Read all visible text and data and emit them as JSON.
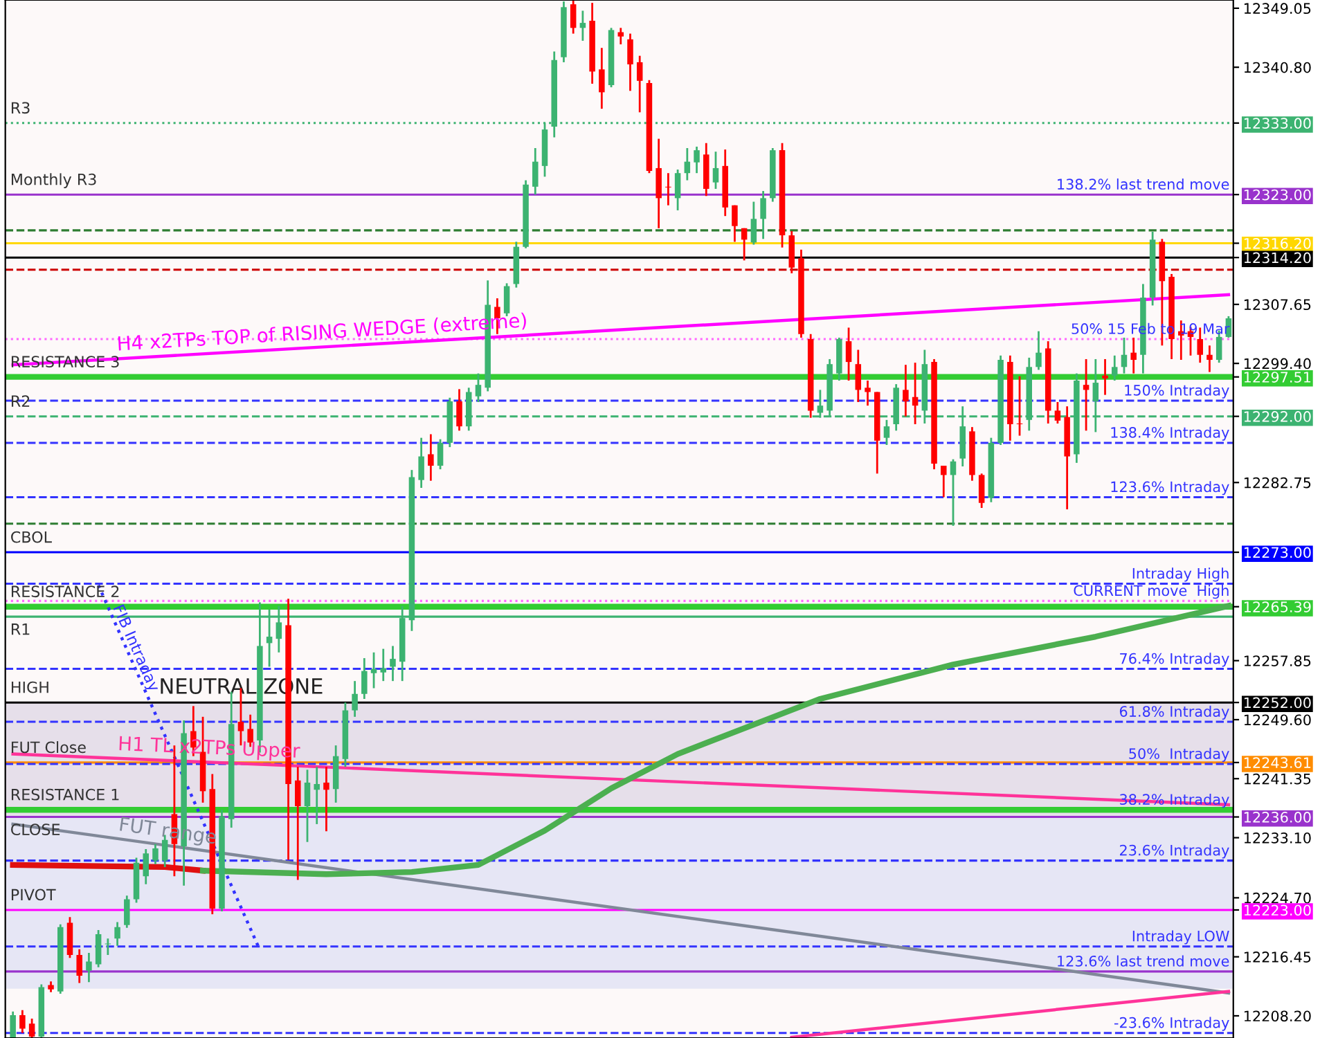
{
  "chart_data": {
    "type": "candlestick",
    "categories": [
      null,
      null,
      null,
      null,
      null,
      null,
      null,
      null,
      null,
      null,
      null,
      null,
      null,
      null,
      null,
      null,
      null,
      null,
      null,
      null,
      null,
      null,
      null,
      null,
      null,
      null,
      null,
      null,
      null,
      null,
      null,
      null,
      null,
      null,
      null,
      null,
      null,
      null,
      null,
      null,
      null,
      null,
      null,
      null,
      null,
      null,
      null,
      null,
      null,
      null,
      null,
      null,
      null,
      null,
      null,
      null,
      null,
      null,
      null,
      null,
      null,
      null,
      null,
      null,
      null,
      null,
      null,
      null,
      null,
      null,
      null,
      null,
      null,
      null,
      null,
      null,
      null,
      null,
      null,
      null,
      null,
      null,
      null,
      null,
      null,
      null,
      null,
      null,
      null,
      null,
      null,
      null,
      null,
      null,
      null,
      null,
      null,
      null,
      null,
      null,
      null,
      null,
      null,
      null,
      null,
      null,
      null,
      null,
      null,
      null,
      null,
      null,
      null,
      null,
      null,
      null,
      null,
      null,
      null,
      null,
      null,
      null,
      null,
      null,
      null,
      null,
      null,
      null,
      null
    ],
    "ohlc": [
      [
        12205.2,
        12208.8,
        12205.2,
        12208.3
      ],
      [
        12208.3,
        12209,
        12205.8,
        12206.4
      ],
      [
        12207.1,
        12207.8,
        12205.2,
        12205.3
      ],
      [
        12205.3,
        12212.6,
        12205.2,
        12212.2
      ],
      [
        12212.5,
        12213,
        12211.5,
        12211.9
      ],
      [
        12211.6,
        12221,
        12211.3,
        12220.6
      ],
      [
        12221.2,
        12222,
        12216.3,
        12216.7
      ],
      [
        12216.7,
        12217.5,
        12212.8,
        12213.8
      ],
      [
        12214.5,
        12217,
        12212.9,
        12215.8
      ],
      [
        12215.4,
        12220.2,
        12215,
        12219.6
      ],
      [
        12218.2,
        12219,
        12216.7,
        12218.3
      ],
      [
        12219,
        12221.3,
        12218,
        12220.6
      ],
      [
        12220.9,
        12225,
        12220.5,
        12224.5
      ],
      [
        12224.5,
        12230.3,
        12224,
        12229.6
      ],
      [
        12227.7,
        12231.5,
        12226.6,
        12230.9
      ],
      [
        12229.9,
        12232.2,
        12229.4,
        12231.6
      ],
      [
        12229.9,
        12233.5,
        12229,
        12232.8
      ],
      [
        12236.4,
        12246,
        12227.7,
        12232.2
      ],
      [
        12231.9,
        12249.5,
        12226.4,
        12247.7
      ],
      [
        12248,
        12251.5,
        12244.5,
        12245.7
      ],
      [
        12245.1,
        12250,
        12238,
        12239.6
      ],
      [
        12239.9,
        12242,
        12222.4,
        12223.2
      ],
      [
        12223.2,
        12237,
        12222.8,
        12236.1
      ],
      [
        12235.7,
        12253.5,
        12234.5,
        12249
      ],
      [
        12249.3,
        12254,
        12246,
        12248
      ],
      [
        12248.3,
        12250.3,
        12245.8,
        12246.4
      ],
      [
        12246.7,
        12266,
        12245,
        12259.9
      ],
      [
        12260.3,
        12265,
        12257,
        12261.2
      ],
      [
        12260.9,
        12265.5,
        12259,
        12263.2
      ],
      [
        12262.8,
        12266.5,
        12230,
        12240.6
      ],
      [
        12241.1,
        12243,
        12227.2,
        12237.5
      ],
      [
        12237.5,
        12242.6,
        12232.5,
        12240.8
      ],
      [
        12239.8,
        12243,
        12235,
        12240.6
      ],
      [
        12240.8,
        12243,
        12234,
        12239.8
      ],
      [
        12239.9,
        12246,
        12238,
        12244.5
      ],
      [
        12244.1,
        12252,
        12243,
        12250.9
      ],
      [
        12250.9,
        12255,
        12250,
        12253.2
      ],
      [
        12253.2,
        12258.2,
        12252.5,
        12256.4
      ],
      [
        12256.1,
        12259,
        12254,
        12256.7
      ],
      [
        12256.2,
        12259.5,
        12255,
        12256.8
      ],
      [
        12257,
        12259.9,
        12255,
        12258.1
      ],
      [
        12257.7,
        12265.5,
        12255,
        12263.8
      ],
      [
        12263.5,
        12284.5,
        12262,
        12283.5
      ],
      [
        12283.1,
        12289,
        12282,
        12286.4
      ],
      [
        12286.7,
        12289.5,
        12283,
        12285.1
      ],
      [
        12285.1,
        12288.8,
        12284.6,
        12288.3
      ],
      [
        12288.3,
        12294.6,
        12287.7,
        12294.1
      ],
      [
        12294.1,
        12295.8,
        12290,
        12290.6
      ],
      [
        12290.6,
        12296,
        12290,
        12295.4
      ],
      [
        12294.8,
        12298,
        12294,
        12296.4
      ],
      [
        12296,
        12311,
        12295.5,
        12307.6
      ],
      [
        12307.3,
        12308.5,
        12303.5,
        12305.7
      ],
      [
        12306.4,
        12310.6,
        12306,
        12310.2
      ],
      [
        12310.5,
        12316.4,
        12310,
        12315.7
      ],
      [
        12315.7,
        12325,
        12315.5,
        12324.4
      ],
      [
        12324.1,
        12329.5,
        12323,
        12327.6
      ],
      [
        12327,
        12333,
        12325.5,
        12332.1
      ],
      [
        12332.5,
        12343,
        12331,
        12341.8
      ],
      [
        12342.2,
        12350,
        12341.5,
        12349.2
      ],
      [
        12349.6,
        12350.1,
        12345.5,
        12346.3
      ],
      [
        12346.3,
        12348.7,
        12344.5,
        12347
      ],
      [
        12347.3,
        12349.8,
        12338.5,
        12340.2
      ],
      [
        12340.5,
        12343.5,
        12335,
        12337.3
      ],
      [
        12338.3,
        12346.3,
        12338,
        12346
      ],
      [
        12345.7,
        12346.3,
        12344,
        12345.1
      ],
      [
        12344.7,
        12345.5,
        12337.5,
        12341.2
      ],
      [
        12341.5,
        12342.4,
        12334.5,
        12338.9
      ],
      [
        12338.6,
        12339,
        12326,
        12326.3
      ],
      [
        12326.7,
        12330.8,
        12318.3,
        12322.5
      ],
      [
        12324.1,
        12326,
        12321.5,
        12324
      ],
      [
        12322.5,
        12326.5,
        12320.8,
        12326
      ],
      [
        12326,
        12329.5,
        12325,
        12327.6
      ],
      [
        12327.5,
        12329.7,
        12326,
        12329.2
      ],
      [
        12328.6,
        12330.2,
        12322.8,
        12323.8
      ],
      [
        12324.7,
        12329,
        12323.8,
        12326.7
      ],
      [
        12327,
        12329.3,
        12320,
        12321.2
      ],
      [
        12321.5,
        12321.5,
        12316.4,
        12318.6
      ],
      [
        12318.3,
        12318.3,
        12313.8,
        12316.7
      ],
      [
        12316.3,
        12322,
        12316,
        12319.6
      ],
      [
        12319.6,
        12323.5,
        12316.8,
        12322.5
      ],
      [
        12322.5,
        12329.5,
        12322,
        12329.2
      ],
      [
        12329.2,
        12330.2,
        12315.6,
        12317.3
      ],
      [
        12317.3,
        12317.9,
        12312,
        12312.8
      ],
      [
        12314.1,
        12315.3,
        12303,
        12303.5
      ],
      [
        12302.8,
        12303.5,
        12291.8,
        12292.8
      ],
      [
        12292.5,
        12295.7,
        12291.8,
        12293.5
      ],
      [
        12292.8,
        12300,
        12292,
        12299.3
      ],
      [
        12298,
        12303,
        12297,
        12302.8
      ],
      [
        12302.5,
        12304.4,
        12297,
        12299.6
      ],
      [
        12299.3,
        12301.3,
        12294,
        12295.7
      ],
      [
        12296,
        12297,
        12293.5,
        12295.4
      ],
      [
        12295.4,
        12295.4,
        12284,
        12288.6
      ],
      [
        12289,
        12291.5,
        12288,
        12290.6
      ],
      [
        12290.9,
        12296.5,
        12290,
        12296
      ],
      [
        12295.7,
        12299.2,
        12292,
        12294.1
      ],
      [
        12294.7,
        12299.5,
        12290.9,
        12293.5
      ],
      [
        12292.8,
        12301.3,
        12291,
        12299.3
      ],
      [
        12299.6,
        12300,
        12284.6,
        12285.4
      ],
      [
        12285.1,
        12285.1,
        12280.7,
        12283.8
      ],
      [
        12283.8,
        12286,
        12276.7,
        12285.7
      ],
      [
        12286.1,
        12293.4,
        12285,
        12290.6
      ],
      [
        12289.9,
        12290.5,
        12283,
        12283.8
      ],
      [
        12283.8,
        12284,
        12279.2,
        12279.9
      ],
      [
        12280.6,
        12289,
        12280,
        12288.3
      ],
      [
        12288.3,
        12300.5,
        12288,
        12299.9
      ],
      [
        12299.6,
        12300.5,
        12288.6,
        12290.9
      ],
      [
        12291,
        12297.6,
        12289.3,
        12290.9
      ],
      [
        12291.5,
        12300.2,
        12290,
        12298.9
      ],
      [
        12298.9,
        12303.9,
        12298.5,
        12300.9
      ],
      [
        12301.5,
        12302.5,
        12291,
        12292.8
      ],
      [
        12292.8,
        12294,
        12291,
        12291.4
      ],
      [
        12291.9,
        12293.4,
        12279,
        12286.4
      ],
      [
        12286.7,
        12298,
        12285.5,
        12297
      ],
      [
        12296.4,
        12300,
        12290,
        12295.7
      ],
      [
        12294.1,
        12300,
        12289.8,
        12296.7
      ],
      [
        12297.7,
        12300,
        12295,
        12297.3
      ],
      [
        12297.7,
        12300.5,
        12297,
        12298.9
      ],
      [
        12298.9,
        12303,
        12298,
        12300.6
      ],
      [
        12300.9,
        12303,
        12298,
        12299.9
      ],
      [
        12300.6,
        12310.5,
        12298,
        12308.6
      ],
      [
        12308.6,
        12317.8,
        12307.5,
        12316.7
      ],
      [
        12316.4,
        12316.8,
        12301.9,
        12310.9
      ],
      [
        12311.5,
        12311.9,
        12300,
        12302.8
      ],
      [
        12303.9,
        12305.4,
        12299.9,
        12303.3
      ],
      [
        12303.9,
        12304.5,
        12300.5,
        12303.1
      ],
      [
        12302.8,
        12304.4,
        12299.5,
        12300.6
      ],
      [
        12300.6,
        12301.9,
        12298.2,
        12299.9
      ],
      [
        12299.9,
        12304,
        12299.5,
        12303.1
      ],
      [
        12303.1,
        12306,
        12303,
        12305.7
      ]
    ],
    "series": [
      {
        "type": "line",
        "name": "H4 x2TPs TOP of RISING WEDGE (extreme)",
        "color": "#ff00ff",
        "line_style": "solid",
        "values": [
          12299.2,
          null,
          null,
          null,
          null,
          null,
          null,
          null,
          null,
          null,
          null,
          null,
          null,
          null,
          null,
          null,
          null,
          null,
          null,
          null,
          null,
          null,
          null,
          null,
          null,
          null,
          null,
          null,
          null,
          null,
          null,
          null,
          null,
          null,
          null,
          null,
          null,
          null,
          null,
          null,
          null,
          null,
          null,
          null,
          null,
          null,
          null,
          null,
          null,
          null,
          null,
          null,
          null,
          null,
          null,
          null,
          null,
          null,
          null,
          null,
          null,
          null,
          null,
          null,
          null,
          null,
          null,
          null,
          null,
          null,
          null,
          null,
          null,
          null,
          null,
          null,
          null,
          null,
          null,
          null,
          null,
          null,
          null,
          null,
          null,
          null,
          null,
          null,
          null,
          null,
          null,
          null,
          null,
          null,
          null,
          null,
          null,
          null,
          null,
          null,
          null,
          null,
          null,
          null,
          null,
          null,
          null,
          null,
          null,
          null,
          null,
          null,
          null,
          null,
          null,
          null,
          null,
          null,
          null,
          null,
          null,
          null,
          null,
          null,
          null,
          null,
          null,
          null,
          12309.0
        ]
      },
      {
        "type": "line",
        "name": "H1 TL x2TPs Upper",
        "color": "#ff3399",
        "line_style": "solid",
        "values": [
          12244.8,
          null,
          null,
          null,
          null,
          null,
          null,
          null,
          null,
          null,
          null,
          null,
          null,
          null,
          null,
          null,
          null,
          null,
          null,
          null,
          null,
          null,
          null,
          null,
          null,
          null,
          null,
          null,
          null,
          null,
          null,
          null,
          null,
          null,
          null,
          null,
          null,
          null,
          null,
          null,
          null,
          null,
          null,
          null,
          null,
          null,
          null,
          null,
          null,
          null,
          null,
          null,
          null,
          null,
          null,
          null,
          null,
          null,
          null,
          null,
          null,
          null,
          null,
          null,
          null,
          null,
          null,
          null,
          null,
          null,
          null,
          null,
          null,
          null,
          null,
          null,
          null,
          null,
          null,
          null,
          null,
          null,
          null,
          null,
          null,
          null,
          null,
          null,
          null,
          null,
          null,
          null,
          null,
          null,
          null,
          null,
          null,
          null,
          null,
          null,
          null,
          null,
          null,
          null,
          null,
          null,
          null,
          null,
          null,
          null,
          null,
          null,
          null,
          null,
          null,
          null,
          null,
          null,
          null,
          null,
          null,
          null,
          null,
          null,
          null,
          null,
          null,
          null,
          12237.7
        ]
      },
      {
        "type": "line",
        "name": "FUT range",
        "color": "#808898",
        "line_style": "solid",
        "values": [
          12235.0,
          null,
          null,
          null,
          null,
          null,
          null,
          null,
          null,
          null,
          null,
          null,
          null,
          null,
          null,
          null,
          null,
          null,
          null,
          null,
          null,
          null,
          null,
          null,
          null,
          null,
          null,
          null,
          null,
          null,
          null,
          null,
          null,
          null,
          null,
          null,
          null,
          null,
          null,
          null,
          null,
          null,
          null,
          null,
          null,
          null,
          null,
          null,
          null,
          null,
          null,
          null,
          null,
          null,
          null,
          null,
          null,
          null,
          null,
          null,
          null,
          null,
          null,
          null,
          null,
          null,
          null,
          null,
          null,
          null,
          null,
          null,
          null,
          null,
          null,
          null,
          null,
          null,
          null,
          null,
          null,
          null,
          null,
          null,
          null,
          null,
          null,
          null,
          null,
          null,
          null,
          null,
          null,
          null,
          null,
          null,
          null,
          null,
          null,
          null,
          null,
          null,
          null,
          null,
          null,
          null,
          null,
          null,
          null,
          null,
          null,
          null,
          null,
          null,
          null,
          null,
          null,
          null,
          null,
          null,
          null,
          null,
          null,
          null,
          null,
          null,
          null,
          null,
          12211.4
        ]
      },
      {
        "type": "line",
        "color": "#ff3399",
        "line_style": "solid",
        "values": [
          null,
          null,
          null,
          null,
          null,
          null,
          null,
          null,
          null,
          null,
          null,
          null,
          null,
          null,
          null,
          null,
          null,
          null,
          null,
          null,
          null,
          null,
          null,
          null,
          null,
          null,
          null,
          null,
          null,
          null,
          null,
          null,
          null,
          null,
          null,
          null,
          null,
          null,
          null,
          null,
          null,
          null,
          null,
          null,
          null,
          null,
          null,
          null,
          null,
          null,
          null,
          null,
          null,
          null,
          null,
          null,
          null,
          null,
          null,
          null,
          null,
          null,
          null,
          null,
          null,
          null,
          null,
          null,
          null,
          null,
          null,
          null,
          null,
          null,
          null,
          null,
          null,
          null,
          null,
          null,
          null,
          null,
          12205.2,
          null,
          null,
          null,
          null,
          null,
          null,
          null,
          null,
          null,
          null,
          null,
          null,
          null,
          null,
          null,
          null,
          null,
          null,
          null,
          null,
          null,
          null,
          null,
          null,
          null,
          null,
          null,
          null,
          null,
          null,
          null,
          null,
          null,
          null,
          null,
          null,
          null,
          null,
          null,
          null,
          null,
          null,
          null,
          null,
          null,
          12211.6
        ]
      },
      {
        "type": "line",
        "name": "FIB Intraday",
        "color": "#3333ff",
        "line_style": "dotted",
        "values": [
          null,
          null,
          null,
          null,
          null,
          null,
          null,
          null,
          null,
          12268.4,
          null,
          null,
          null,
          null,
          null,
          null,
          null,
          null,
          null,
          null,
          null,
          null,
          null,
          null,
          null,
          null,
          12217.4,
          null,
          null,
          null,
          null,
          null,
          null,
          null,
          null,
          null,
          null,
          null,
          null,
          null,
          null,
          null,
          null,
          null,
          null,
          null,
          null,
          null,
          null,
          null,
          null,
          null,
          null,
          null,
          null,
          null,
          null,
          null,
          null,
          null,
          null,
          null,
          null,
          null,
          null,
          null,
          null,
          null,
          null,
          null,
          null,
          null,
          null,
          null,
          null,
          null,
          null,
          null,
          null,
          null,
          null,
          null,
          null,
          null,
          null,
          null,
          null,
          null,
          null,
          null,
          null,
          null,
          null,
          null,
          null,
          null,
          null,
          null,
          null,
          null,
          null,
          null,
          null,
          null,
          null,
          null,
          null,
          null,
          null,
          null,
          null,
          null,
          null,
          null,
          null,
          null,
          null,
          null,
          null,
          null,
          null,
          null,
          null,
          null,
          null,
          null,
          null,
          null,
          null
        ]
      },
      {
        "type": "line",
        "color": "#e01010",
        "line_style": "solid",
        "values": [
          12229.3,
          null,
          null,
          null,
          null,
          null,
          null,
          null,
          null,
          null,
          null,
          null,
          null,
          null,
          null,
          null,
          12229.0,
          null,
          null,
          null,
          12228.5,
          null,
          null,
          null,
          null,
          null,
          null,
          null,
          null,
          null,
          null,
          null,
          null,
          null,
          null,
          null,
          null,
          null,
          null,
          null,
          null,
          null,
          null,
          null,
          null,
          null,
          null,
          null,
          null,
          null,
          null,
          null,
          null,
          null,
          null,
          null,
          null,
          null,
          null,
          null,
          null,
          null,
          null,
          null,
          null,
          null,
          null,
          null,
          null,
          null,
          null,
          null,
          null,
          null,
          null,
          null,
          null,
          null,
          null,
          null,
          null,
          null,
          null,
          null,
          null,
          null,
          null,
          null,
          null,
          null,
          null,
          null,
          null,
          null,
          null,
          null,
          null,
          null,
          null,
          null,
          null,
          null,
          null,
          null,
          null,
          null,
          null,
          null,
          null,
          null,
          null,
          null,
          null,
          null,
          null,
          null,
          null,
          null,
          null,
          null,
          null,
          null,
          null,
          null,
          null,
          null,
          null,
          null,
          null
        ]
      },
      {
        "type": "line",
        "color": "#4caf50",
        "line_style": "solid",
        "values": [
          null,
          null,
          null,
          null,
          null,
          null,
          null,
          null,
          null,
          null,
          null,
          null,
          null,
          null,
          null,
          null,
          null,
          null,
          null,
          null,
          12228.5,
          null,
          null,
          null,
          null,
          null,
          null,
          null,
          null,
          null,
          null,
          null,
          null,
          12228.0,
          null,
          null,
          null,
          null,
          null,
          null,
          null,
          null,
          12228.3,
          null,
          null,
          null,
          null,
          null,
          null,
          12229.3,
          null,
          null,
          null,
          null,
          null,
          null,
          12234.1,
          null,
          null,
          null,
          null,
          null,
          null,
          12240.0,
          null,
          null,
          null,
          null,
          null,
          null,
          12244.8,
          null,
          null,
          null,
          null,
          null,
          null,
          null,
          null,
          null,
          null,
          null,
          null,
          null,
          null,
          12252.5,
          null,
          null,
          null,
          null,
          null,
          null,
          null,
          null,
          null,
          null,
          null,
          null,
          null,
          12257.3,
          null,
          null,
          null,
          null,
          null,
          null,
          null,
          null,
          null,
          null,
          null,
          null,
          null,
          null,
          12261.2,
          null,
          null,
          null,
          null,
          null,
          null,
          null,
          null,
          null,
          null,
          null,
          null,
          null,
          12265.5
        ]
      }
    ],
    "ylim": [
      12205.1,
      12350.2
    ],
    "yticks": [
      {
        "value": 12349.05,
        "label": "12349.05"
      },
      {
        "value": 12340.8,
        "label": "12340.80"
      },
      {
        "value": 12333,
        "label": "12333.00"
      },
      {
        "value": 12323,
        "label": "12323.00"
      },
      {
        "value": 12316.2,
        "label": "12316.20"
      },
      {
        "value": 12314.2,
        "label": "12314.20"
      },
      {
        "value": 12307.65,
        "label": "12307.65"
      },
      {
        "value": 12299.4,
        "label": "12299.40"
      },
      {
        "value": 12297.51,
        "label": "12297.51"
      },
      {
        "value": 12292,
        "label": "12292.00"
      },
      {
        "value": 12282.75,
        "label": "12282.75"
      },
      {
        "value": 12273,
        "label": "12273.00"
      },
      {
        "value": 12265.39,
        "label": "12265.39"
      },
      {
        "value": 12257.85,
        "label": "12257.85"
      },
      {
        "value": 12252,
        "label": "12252.00"
      },
      {
        "value": 12249.6,
        "label": "12249.60"
      },
      {
        "value": 12243.61,
        "label": "12243.61"
      },
      {
        "value": 12241.35,
        "label": "12241.35"
      },
      {
        "value": 12236,
        "label": "12236.00"
      },
      {
        "value": 12233.1,
        "label": "12233.10"
      },
      {
        "value": 12224.7,
        "label": "12224.70"
      },
      {
        "value": 12223,
        "label": "12223.00"
      },
      {
        "value": 12216.45,
        "label": "12216.45"
      },
      {
        "value": 12208.2,
        "label": "12208.20"
      }
    ],
    "ref_lines": [
      {
        "axis": "y",
        "value": 12333,
        "label": "R3",
        "color": "#3cb371",
        "line_style": "dotted"
      },
      {
        "axis": "y",
        "value": 12323,
        "label": "Monthly R3",
        "color": "#9933cc",
        "line_style": "solid"
      },
      {
        "axis": "y",
        "value": 12318.0,
        "color": "#2e7d32",
        "line_style": "dashed"
      },
      {
        "axis": "y",
        "value": 12316.2,
        "color": "#ffd700",
        "line_style": "solid"
      },
      {
        "axis": "y",
        "value": 12314.2,
        "color": "#000000",
        "line_style": "solid"
      },
      {
        "axis": "y",
        "value": 12312.5,
        "color": "#cc0000",
        "line_style": "dashed"
      },
      {
        "axis": "y",
        "value": 12302.8,
        "color": "#ff66ff",
        "line_style": "dotted"
      },
      {
        "axis": "y",
        "value": 12297.51,
        "label": "RESISTANCE 3",
        "color": "#33cc33",
        "line_style": "solid"
      },
      {
        "axis": "y",
        "value": 12294.2,
        "color": "#3333ff",
        "line_style": "dashed"
      },
      {
        "axis": "y",
        "value": 12292,
        "label": "R2",
        "color": "#3cb371",
        "line_style": "dashed"
      },
      {
        "axis": "y",
        "value": 12288.3,
        "color": "#3333ff",
        "line_style": "dashed"
      },
      {
        "axis": "y",
        "value": 12280.7,
        "color": "#3333ff",
        "line_style": "dashed"
      },
      {
        "axis": "y",
        "value": 12277.0,
        "color": "#2e7d32",
        "line_style": "dashed"
      },
      {
        "axis": "y",
        "value": 12273,
        "label": "CBOL",
        "color": "#0000ff",
        "line_style": "solid"
      },
      {
        "axis": "y",
        "value": 12268.6,
        "color": "#3333ff",
        "line_style": "dashed"
      },
      {
        "axis": "y",
        "value": 12266.2,
        "color": "#ff66ff",
        "line_style": "dotted"
      },
      {
        "axis": "y",
        "value": 12265.39,
        "label": "RESISTANCE 2",
        "color": "#33cc33",
        "line_style": "solid"
      },
      {
        "axis": "y",
        "value": 12264,
        "label": "R1",
        "color": "#3cb371",
        "line_style": "solid"
      },
      {
        "axis": "y",
        "value": 12256.7,
        "color": "#3333ff",
        "line_style": "dashed"
      },
      {
        "axis": "y",
        "value": 12252,
        "label": "HIGH",
        "color": "#000000",
        "line_style": "solid"
      },
      {
        "axis": "y",
        "value": 12249.3,
        "color": "#3333ff",
        "line_style": "dashed"
      },
      {
        "axis": "y",
        "value": 12243.61,
        "label": "FUT Close",
        "color": "#ff8c00",
        "line_style": "solid"
      },
      {
        "axis": "y",
        "value": 12243.4,
        "color": "#3333ff",
        "line_style": "dashed"
      },
      {
        "axis": "y",
        "value": 12237.0,
        "label": "RESISTANCE 1",
        "color": "#33cc33",
        "line_style": "solid"
      },
      {
        "axis": "y",
        "value": 12236,
        "label": "CLOSE",
        "color": "#9933cc",
        "line_style": "solid"
      },
      {
        "axis": "y",
        "value": 12229.9,
        "color": "#3333ff",
        "line_style": "dashed"
      },
      {
        "axis": "y",
        "value": 12223,
        "label": "PIVOT",
        "color": "#ff00ff",
        "line_style": "solid"
      },
      {
        "axis": "y",
        "value": 12217.9,
        "color": "#3333ff",
        "line_style": "dashed"
      },
      {
        "axis": "y",
        "value": 12214.4,
        "color": "#9933cc",
        "line_style": "solid"
      },
      {
        "axis": "y",
        "value": 12205.8,
        "color": "#3333ff",
        "line_style": "dashed"
      }
    ],
    "bands": [
      {
        "axis": "y",
        "from": 12236,
        "to": 12252,
        "label": "NEUTRAL ZONE",
        "color": "#e6dfea"
      },
      {
        "axis": "y",
        "from": 12212,
        "to": 12236,
        "color": "#e6e6f5"
      }
    ],
    "annotations": [
      {
        "text": "138.2% last trend move",
        "y": 12323
      },
      {
        "text": "50% 15 Feb to 19 Mar",
        "y": 12302.8
      },
      {
        "text": "150% Intraday",
        "y": 12294.2
      },
      {
        "text": "138.4% Intraday",
        "y": 12288.3
      },
      {
        "text": "123.6% Intraday",
        "y": 12280.7
      },
      {
        "text": "Intraday High",
        "y": 12268.6
      },
      {
        "text": "CURRENT move  High",
        "y": 12266.2
      },
      {
        "text": "76.4% Intraday",
        "y": 12256.7
      },
      {
        "text": "61.8% Intraday",
        "y": 12249.3
      },
      {
        "text": "50%  Intraday",
        "y": 12243.4
      },
      {
        "text": "38.2% Intraday",
        "y": 12237.0
      },
      {
        "text": "23.6% Intraday",
        "y": 12229.9
      },
      {
        "text": "Intraday LOW",
        "y": 12217.9
      },
      {
        "text": "123.6% last trend move",
        "y": 12214.4
      },
      {
        "text": "-23.6% Intraday",
        "y": 12205.8
      }
    ]
  }
}
